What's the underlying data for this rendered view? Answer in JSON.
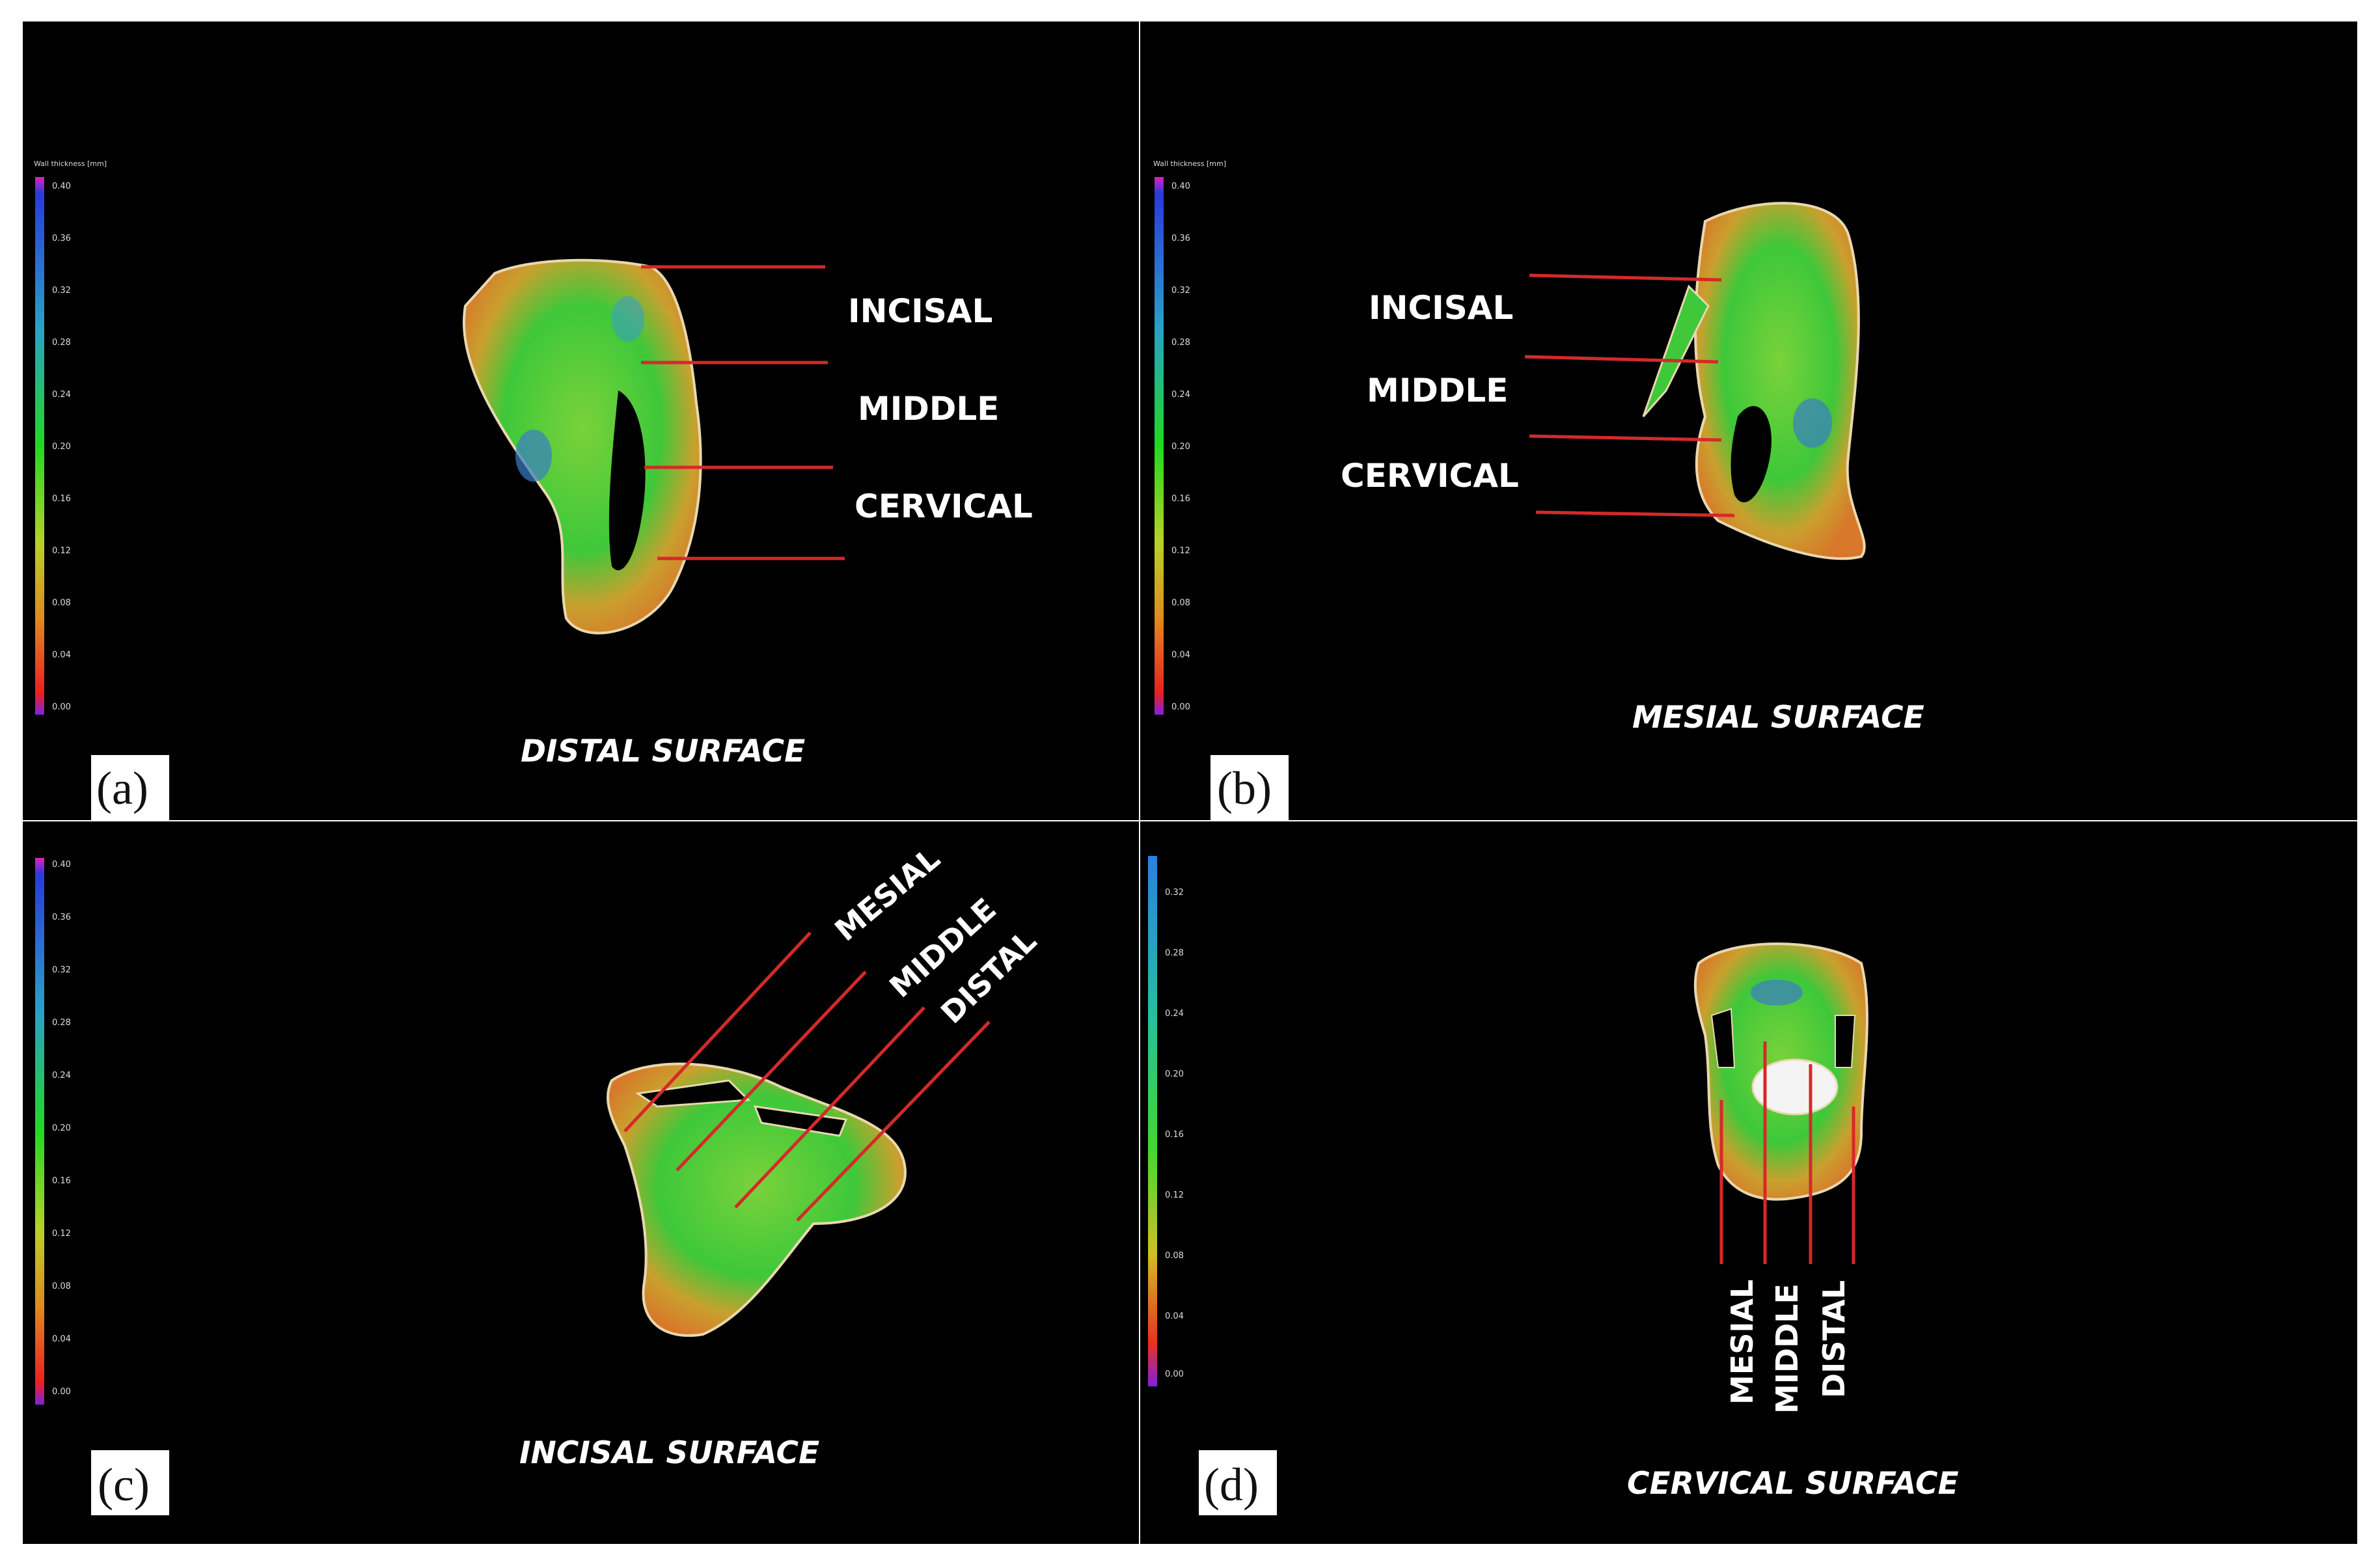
{
  "figure": {
    "panels": [
      {
        "id": "a",
        "letter": "(a)",
        "caption": "DISTAL SURFACE",
        "legend_title": "Wall thickness [mm]",
        "legend_ticks": [
          "0.40",
          "0.36",
          "0.32",
          "0.28",
          "0.24",
          "0.20",
          "0.16",
          "0.12",
          "0.08",
          "0.04",
          "0.00"
        ],
        "region_labels": [
          "INCISAL",
          "MIDDLE",
          "CERVICAL"
        ]
      },
      {
        "id": "b",
        "letter": "(b)",
        "caption": "MESIAL SURFACE",
        "legend_title": "Wall thickness [mm]",
        "legend_ticks": [
          "0.40",
          "0.36",
          "0.32",
          "0.28",
          "0.24",
          "0.20",
          "0.16",
          "0.12",
          "0.08",
          "0.04",
          "0.00"
        ],
        "region_labels": [
          "INCISAL",
          "MIDDLE",
          "CERVICAL"
        ]
      },
      {
        "id": "c",
        "letter": "(c)",
        "caption": "INCISAL SURFACE",
        "legend_ticks": [
          "0.40",
          "0.36",
          "0.32",
          "0.28",
          "0.24",
          "0.20",
          "0.16",
          "0.12",
          "0.08",
          "0.04",
          "0.00"
        ],
        "region_labels": [
          "MESIAL",
          "MIDDLE",
          "DISTAL"
        ]
      },
      {
        "id": "d",
        "letter": "(d)",
        "caption": "CERVICAL SURFACE",
        "legend_ticks": [
          "0.32",
          "0.28",
          "0.24",
          "0.20",
          "0.16",
          "0.12",
          "0.08",
          "0.04",
          "0.00"
        ],
        "region_labels": [
          "MESIAL",
          "MIDDLE",
          "DISTAL"
        ]
      }
    ],
    "colors": {
      "background": "#000000",
      "marker_line": "#d42a2a",
      "mesh_green": "#33c23a",
      "mesh_orange": "#d88a2e",
      "mesh_blue": "#3a7ec4"
    }
  }
}
